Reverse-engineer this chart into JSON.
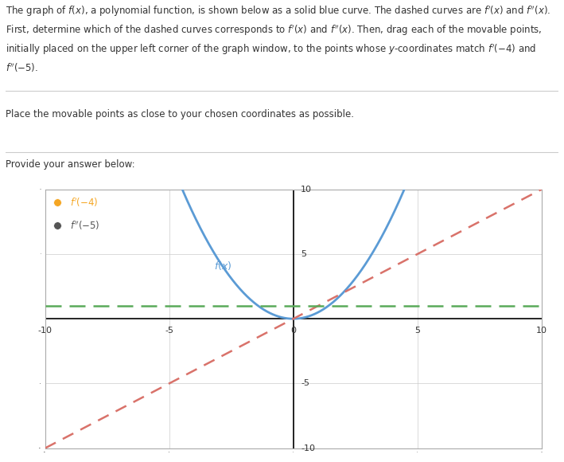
{
  "xlim": [
    -10,
    10
  ],
  "ylim": [
    -10,
    10
  ],
  "xticks": [
    -10,
    -5,
    0,
    5,
    10
  ],
  "yticks": [
    -10,
    -5,
    5,
    10
  ],
  "fx_color": "#5b9bd5",
  "fpx_color": "#d9726a",
  "fppx_color": "#5aaa5a",
  "point1_color": "#f5a623",
  "point2_color": "#555555",
  "point1_x": -9.5,
  "point1_y": 9.0,
  "point2_x": -9.5,
  "point2_y": 7.2,
  "background_color": "#ffffff",
  "grid_color": "#cccccc",
  "fig_width": 7.09,
  "fig_height": 5.8,
  "dpi": 100
}
